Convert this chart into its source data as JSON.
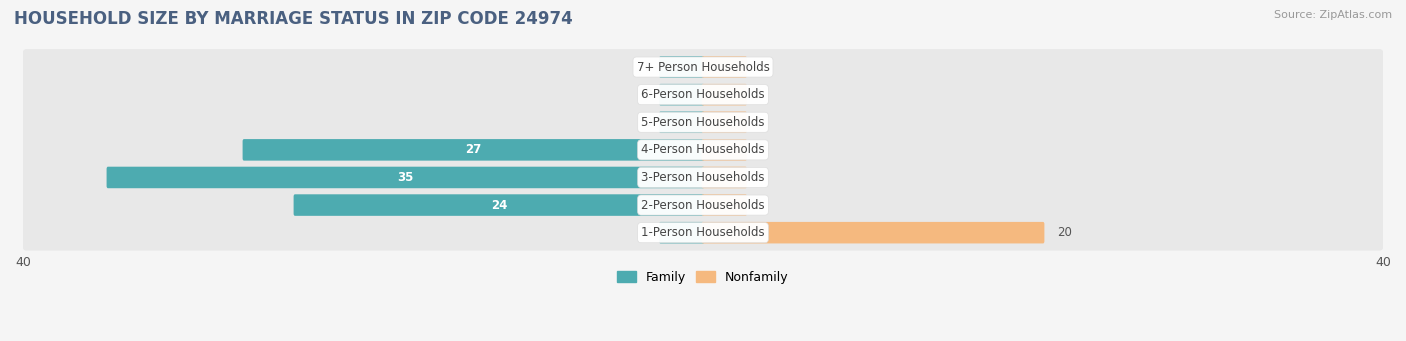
{
  "title": "HOUSEHOLD SIZE BY MARRIAGE STATUS IN ZIP CODE 24974",
  "source": "Source: ZipAtlas.com",
  "categories": [
    "7+ Person Households",
    "6-Person Households",
    "5-Person Households",
    "4-Person Households",
    "3-Person Households",
    "2-Person Households",
    "1-Person Households"
  ],
  "family_values": [
    0,
    0,
    0,
    27,
    35,
    24,
    0
  ],
  "nonfamily_values": [
    0,
    0,
    0,
    0,
    0,
    0,
    20
  ],
  "family_color": "#4DABB0",
  "nonfamily_color": "#F5B97F",
  "zero_stub": 2.5,
  "xlim": [
    -40,
    40
  ],
  "background_color": "#f5f5f5",
  "row_bg_color": "#e8e8e8",
  "title_fontsize": 12,
  "label_fontsize": 8.5,
  "axis_fontsize": 9,
  "source_fontsize": 8
}
